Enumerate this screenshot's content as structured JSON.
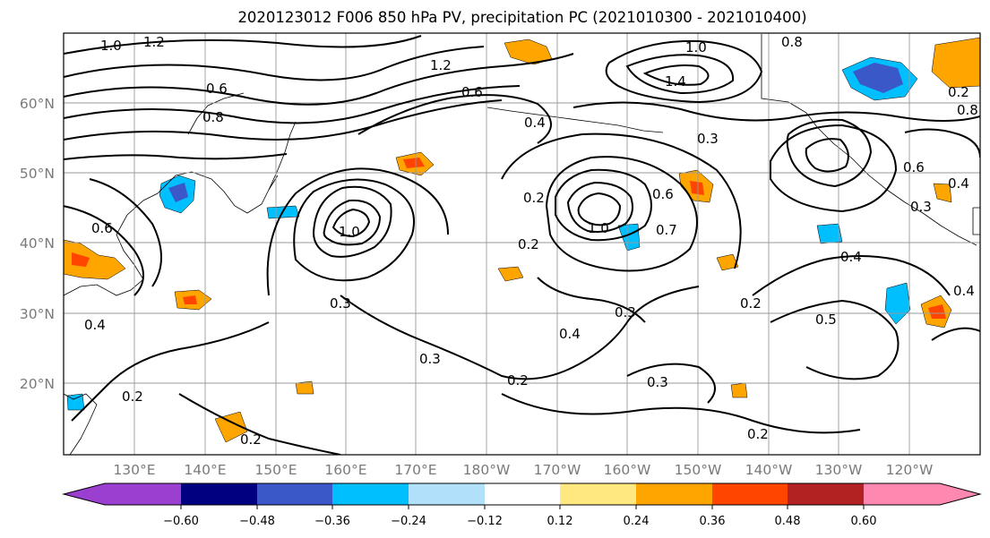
{
  "title": "2020123012 F006 850 hPa PV, precipitation PC (2021010300 - 2021010400)",
  "lat_labels": [
    "20°N",
    "30°N",
    "40°N",
    "50°N",
    "60°N"
  ],
  "lon_labels": [
    "130°E",
    "140°E",
    "150°E",
    "160°E",
    "170°E",
    "180°W",
    "170°W",
    "160°W",
    "150°W",
    "140°W",
    "130°W",
    "120°W"
  ],
  "colorbar": {
    "ticks": [
      "−0.60",
      "−0.48",
      "−0.36",
      "−0.24",
      "−0.12",
      "0.12",
      "0.24",
      "0.36",
      "0.48",
      "0.60"
    ],
    "colors": [
      "#9b3fd0",
      "#000080",
      "#3a58c8",
      "#00bfff",
      "#b0e0fa",
      "#ffffff",
      "#ffe87f",
      "#ffa500",
      "#ff4500",
      "#b22222",
      "#ff88b0"
    ]
  },
  "contour_labels": [
    "1.0",
    "1.2",
    "0.8",
    "0.6",
    "1.2",
    "0.6",
    "1.0",
    "1.4",
    "0.8",
    "0.4",
    "0.3",
    "0.4",
    "0.8",
    "0.6",
    "0.6",
    "0.2",
    "0.2",
    "1.0",
    "1.0",
    "0.7",
    "0.6",
    "0.3",
    "0.4",
    "0.2",
    "0.3",
    "0.4",
    "0.3",
    "0.3",
    "0.2",
    "0.2",
    "0.5",
    "0.4",
    "0.2",
    "0.2",
    "0.4",
    "0.3",
    "0.2"
  ]
}
